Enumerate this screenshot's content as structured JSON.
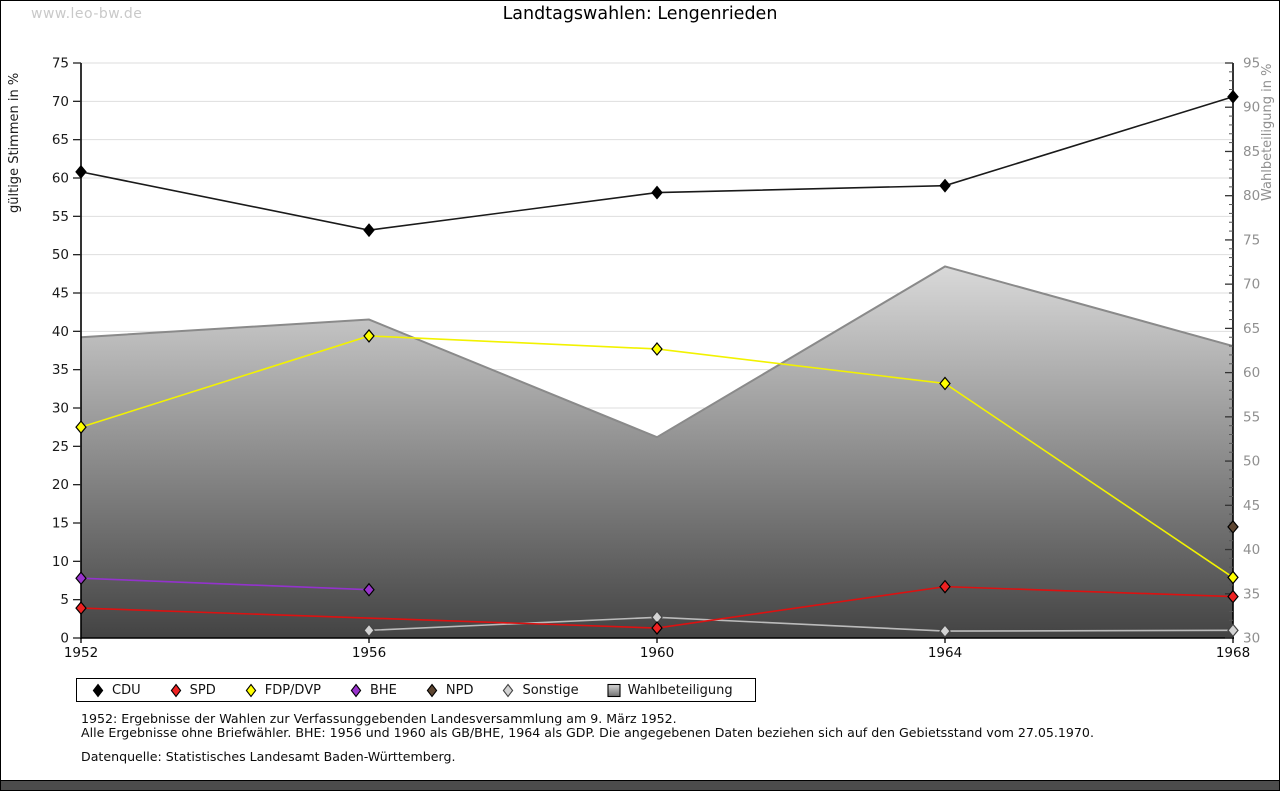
{
  "watermark": "www.leo-bw.de",
  "title": "Landtagswahlen: Lengenrieden",
  "chart_data": {
    "type": "line",
    "title": "Landtagswahlen: Lengenrieden",
    "x_categories": [
      "1952",
      "1956",
      "1960",
      "1964",
      "1968"
    ],
    "grid": true,
    "legend_position": "bottom",
    "axes": {
      "left": {
        "label": "gültige Stimmen in %",
        "min": 0,
        "max": 75,
        "tick_step": 5
      },
      "right": {
        "label": "Wahlbeteiligung in %",
        "min": 30,
        "max": 95,
        "tick_step": 5,
        "minor_tick_step": 1
      }
    },
    "series": [
      {
        "name": "Wahlbeteiligung",
        "type": "area",
        "axis": "right",
        "line_color": "#8a8a8a",
        "fill_top": "#d9d9d9",
        "fill_bottom": "#434343",
        "values": [
          64,
          66,
          52.7,
          72,
          63
        ]
      },
      {
        "name": "Sonstige",
        "type": "line",
        "axis": "left",
        "color": "#bbbbbb",
        "marker_fill": "#d3d3d3",
        "marker_stroke": "#444444",
        "values": [
          null,
          1.0,
          2.7,
          0.9,
          1.0
        ]
      },
      {
        "name": "BHE",
        "type": "line",
        "axis": "left",
        "color": "#9333cc",
        "marker_fill": "#9933cc",
        "marker_stroke": "#000000",
        "values": [
          7.8,
          6.3,
          null,
          null,
          null
        ]
      },
      {
        "name": "SPD",
        "type": "line",
        "axis": "left",
        "color": "#dd1111",
        "marker_fill": "#ee2222",
        "marker_stroke": "#000000",
        "values": [
          3.9,
          null,
          1.3,
          6.7,
          5.4
        ]
      },
      {
        "name": "FDP/DVP",
        "type": "line",
        "axis": "left",
        "color": "#f2f200",
        "marker_fill": "#ffff00",
        "marker_stroke": "#000000",
        "values": [
          27.5,
          39.4,
          37.7,
          33.2,
          7.9
        ]
      },
      {
        "name": "NPD",
        "type": "line",
        "axis": "left",
        "color": "#5e4632",
        "marker_fill": "#5e4632",
        "marker_stroke": "#000000",
        "values": [
          null,
          null,
          null,
          null,
          14.5
        ]
      },
      {
        "name": "CDU",
        "type": "line",
        "axis": "left",
        "color": "#1a1a1a",
        "marker_fill": "#000000",
        "marker_stroke": "#000000",
        "values": [
          60.8,
          53.2,
          58.1,
          59.0,
          70.6
        ]
      }
    ]
  },
  "legend": {
    "items": [
      {
        "label": "CDU",
        "marker": "diamond",
        "fill": "#000000",
        "stroke": "#000000"
      },
      {
        "label": "SPD",
        "marker": "diamond",
        "fill": "#ee2222",
        "stroke": "#000000"
      },
      {
        "label": "FDP/DVP",
        "marker": "diamond",
        "fill": "#ffff00",
        "stroke": "#000000"
      },
      {
        "label": "BHE",
        "marker": "diamond",
        "fill": "#9933cc",
        "stroke": "#000000"
      },
      {
        "label": "NPD",
        "marker": "diamond",
        "fill": "#5e4632",
        "stroke": "#000000"
      },
      {
        "label": "Sonstige",
        "marker": "diamond",
        "fill": "#d3d3d3",
        "stroke": "#444444"
      },
      {
        "label": "Wahlbeteiligung",
        "marker": "gradient-square",
        "fill_top": "#d9d9d9",
        "fill_bottom": "#6e6e6e",
        "stroke": "#000000"
      }
    ]
  },
  "footnotes": {
    "line1": "1952: Ergebnisse der Wahlen zur Verfassunggebenden Landesversammlung am 9. März 1952.",
    "line2": "Alle Ergebnisse ohne Briefwähler. BHE: 1956 und 1960 als GB/BHE, 1964 als GDP. Die angegebenen Daten beziehen sich auf den Gebietsstand vom 27.05.1970.",
    "source": "Datenquelle: Statistisches Landesamt Baden-Württemberg."
  }
}
